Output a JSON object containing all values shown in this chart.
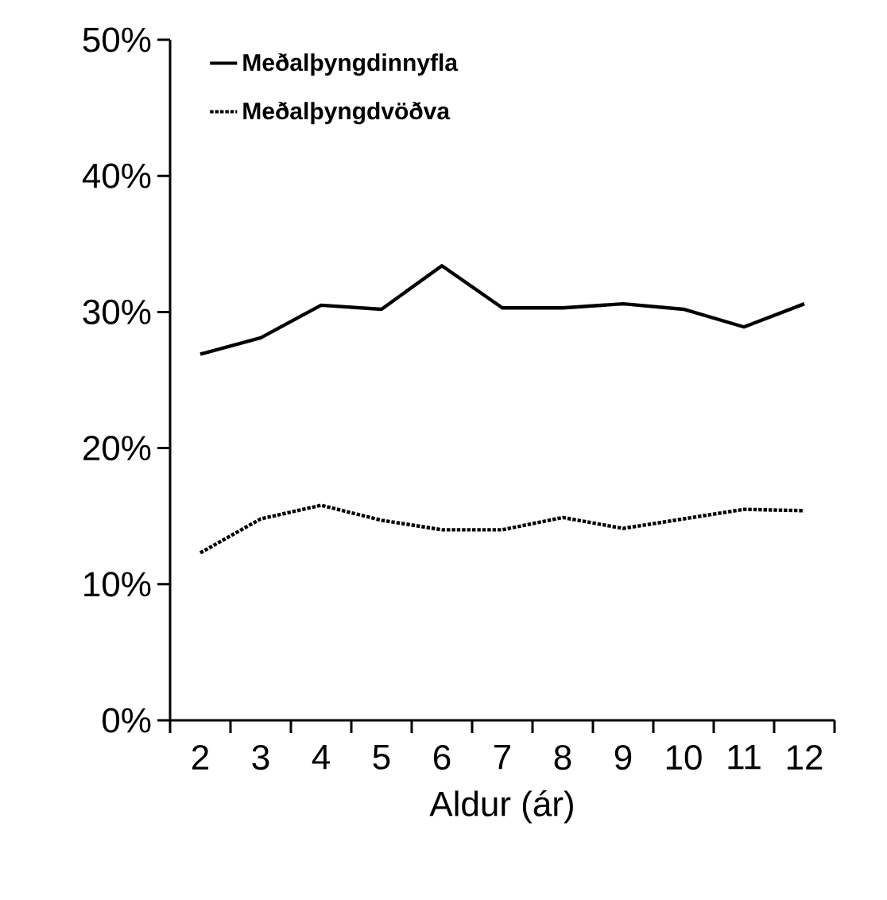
{
  "chart_data": {
    "type": "line",
    "xlabel": "Aldur (ár)",
    "categories": [
      "2",
      "3",
      "4",
      "5",
      "6",
      "7",
      "8",
      "9",
      "10",
      "11",
      "12"
    ],
    "series": [
      {
        "name": "Meðalþyngdinnyfla",
        "color": "#000000",
        "line_style": "solid",
        "values": [
          26.9,
          28.1,
          30.5,
          30.2,
          33.4,
          30.3,
          30.3,
          30.6,
          30.2,
          28.9,
          30.6
        ]
      },
      {
        "name": "Meðalþyngdvöðva",
        "color": "#000000",
        "line_style": "dotted",
        "values": [
          12.3,
          14.8,
          15.8,
          14.7,
          14.0,
          14.0,
          14.9,
          14.1,
          14.8,
          15.5,
          15.4
        ]
      }
    ],
    "ylim": [
      0,
      50
    ],
    "yticks": [
      {
        "value": 0,
        "label": "0%"
      },
      {
        "value": 10,
        "label": "10%"
      },
      {
        "value": 20,
        "label": "20%"
      },
      {
        "value": 30,
        "label": "30%"
      },
      {
        "value": 40,
        "label": "40%"
      },
      {
        "value": 50,
        "label": "50%"
      }
    ],
    "legend": "top left",
    "grid": false,
    "marker": "none"
  }
}
